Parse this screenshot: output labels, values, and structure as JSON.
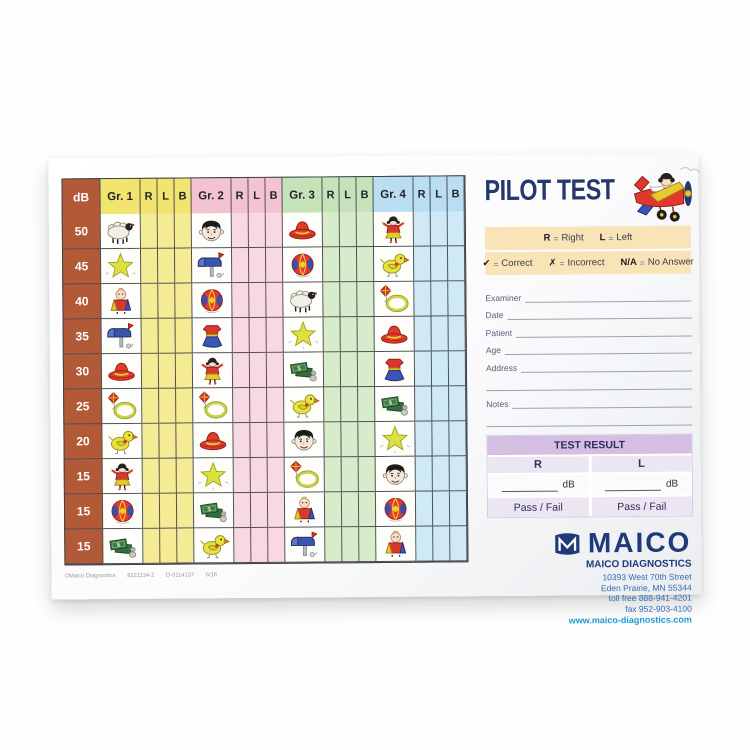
{
  "header": {
    "title": "PILOT TEST"
  },
  "legend": {
    "ears": [
      {
        "symbol": "R",
        "meaning": "Right"
      },
      {
        "symbol": "L",
        "meaning": "Left"
      }
    ],
    "marks": [
      {
        "symbol": "✔",
        "meaning": "Correct"
      },
      {
        "symbol": "✗",
        "meaning": "Incorrect"
      },
      {
        "symbol": "N/A",
        "meaning": "No Answer"
      }
    ]
  },
  "table": {
    "corner_label": "dB",
    "sub_headers": [
      "R",
      "L",
      "B"
    ],
    "db_color": "#b25a38",
    "groups": [
      {
        "label": "Gr. 1",
        "header_color": "#f1e46f",
        "tint_color": "#f5eb94"
      },
      {
        "label": "Gr. 2",
        "header_color": "#f4c3d2",
        "tint_color": "#f8d9e3"
      },
      {
        "label": "Gr. 3",
        "header_color": "#c6e2b8",
        "tint_color": "#d7eccb"
      },
      {
        "label": "Gr. 4",
        "header_color": "#b9ddf1",
        "tint_color": "#cfe9f7"
      }
    ],
    "rows": [
      {
        "db": "50",
        "icons": [
          "sheep",
          "boy",
          "hat",
          "doll"
        ]
      },
      {
        "db": "45",
        "icons": [
          "star",
          "mailbox",
          "ball",
          "bird"
        ]
      },
      {
        "db": "40",
        "icons": [
          "baby",
          "ball",
          "sheep",
          "kite"
        ]
      },
      {
        "db": "35",
        "icons": [
          "mailbox",
          "dress",
          "star",
          "hat"
        ]
      },
      {
        "db": "30",
        "icons": [
          "hat",
          "doll",
          "money",
          "dress"
        ]
      },
      {
        "db": "25",
        "icons": [
          "kite",
          "kite",
          "bird",
          "money"
        ]
      },
      {
        "db": "20",
        "icons": [
          "bird",
          "hat",
          "boy",
          "star"
        ]
      },
      {
        "db": "15",
        "icons": [
          "doll",
          "star",
          "kite",
          "boy"
        ]
      },
      {
        "db": "15",
        "icons": [
          "ball",
          "money",
          "baby",
          "ball"
        ]
      },
      {
        "db": "15",
        "icons": [
          "money",
          "bird",
          "mailbox",
          "baby"
        ]
      }
    ],
    "icon_names": {
      "sheep": "sheep-icon",
      "boy": "boy-face-icon",
      "hat": "sombrero-icon",
      "doll": "girl-doll-icon",
      "star": "star-icon",
      "mailbox": "mailbox-icon",
      "ball": "ball-icon",
      "bird": "bird-icon",
      "baby": "baby-icon",
      "kite": "kite-and-hoop-icon",
      "dress": "dress-icon",
      "money": "money-icon"
    }
  },
  "form": {
    "fields": [
      {
        "label": "Examiner",
        "extra_line": false
      },
      {
        "label": "Date",
        "extra_line": false
      },
      {
        "label": "Patient",
        "extra_line": false
      },
      {
        "label": "Age",
        "extra_line": false
      },
      {
        "label": "Address",
        "extra_line": true
      },
      {
        "label": "Notes",
        "extra_line": true
      }
    ]
  },
  "test_result": {
    "title": "TEST RESULT",
    "unit": "dB",
    "pass_fail": "Pass / Fail",
    "columns": [
      {
        "ear": "R"
      },
      {
        "ear": "L"
      }
    ]
  },
  "brand": {
    "logo_text": "MAICO",
    "company": "MAICO DIAGNOSTICS",
    "address_lines": [
      "10393 West 70th Street",
      "Eden Prairie, MN 55344",
      "toll free 888-941-4201",
      "fax 952-903-4100"
    ],
    "website": "www.maico-diagnostics.com"
  },
  "footer": {
    "copyright": "©Maico Diagnostics",
    "part_number": "8121134-2",
    "doc_number": "D-0114137",
    "date_code": "6/16"
  },
  "colors": {
    "title_navy": "#24386e",
    "brand_navy": "#1e3a7a",
    "web_blue": "#1d9ad6",
    "legend_cream": "#f9e4b8",
    "result_lavender": "#d4bfe2"
  }
}
